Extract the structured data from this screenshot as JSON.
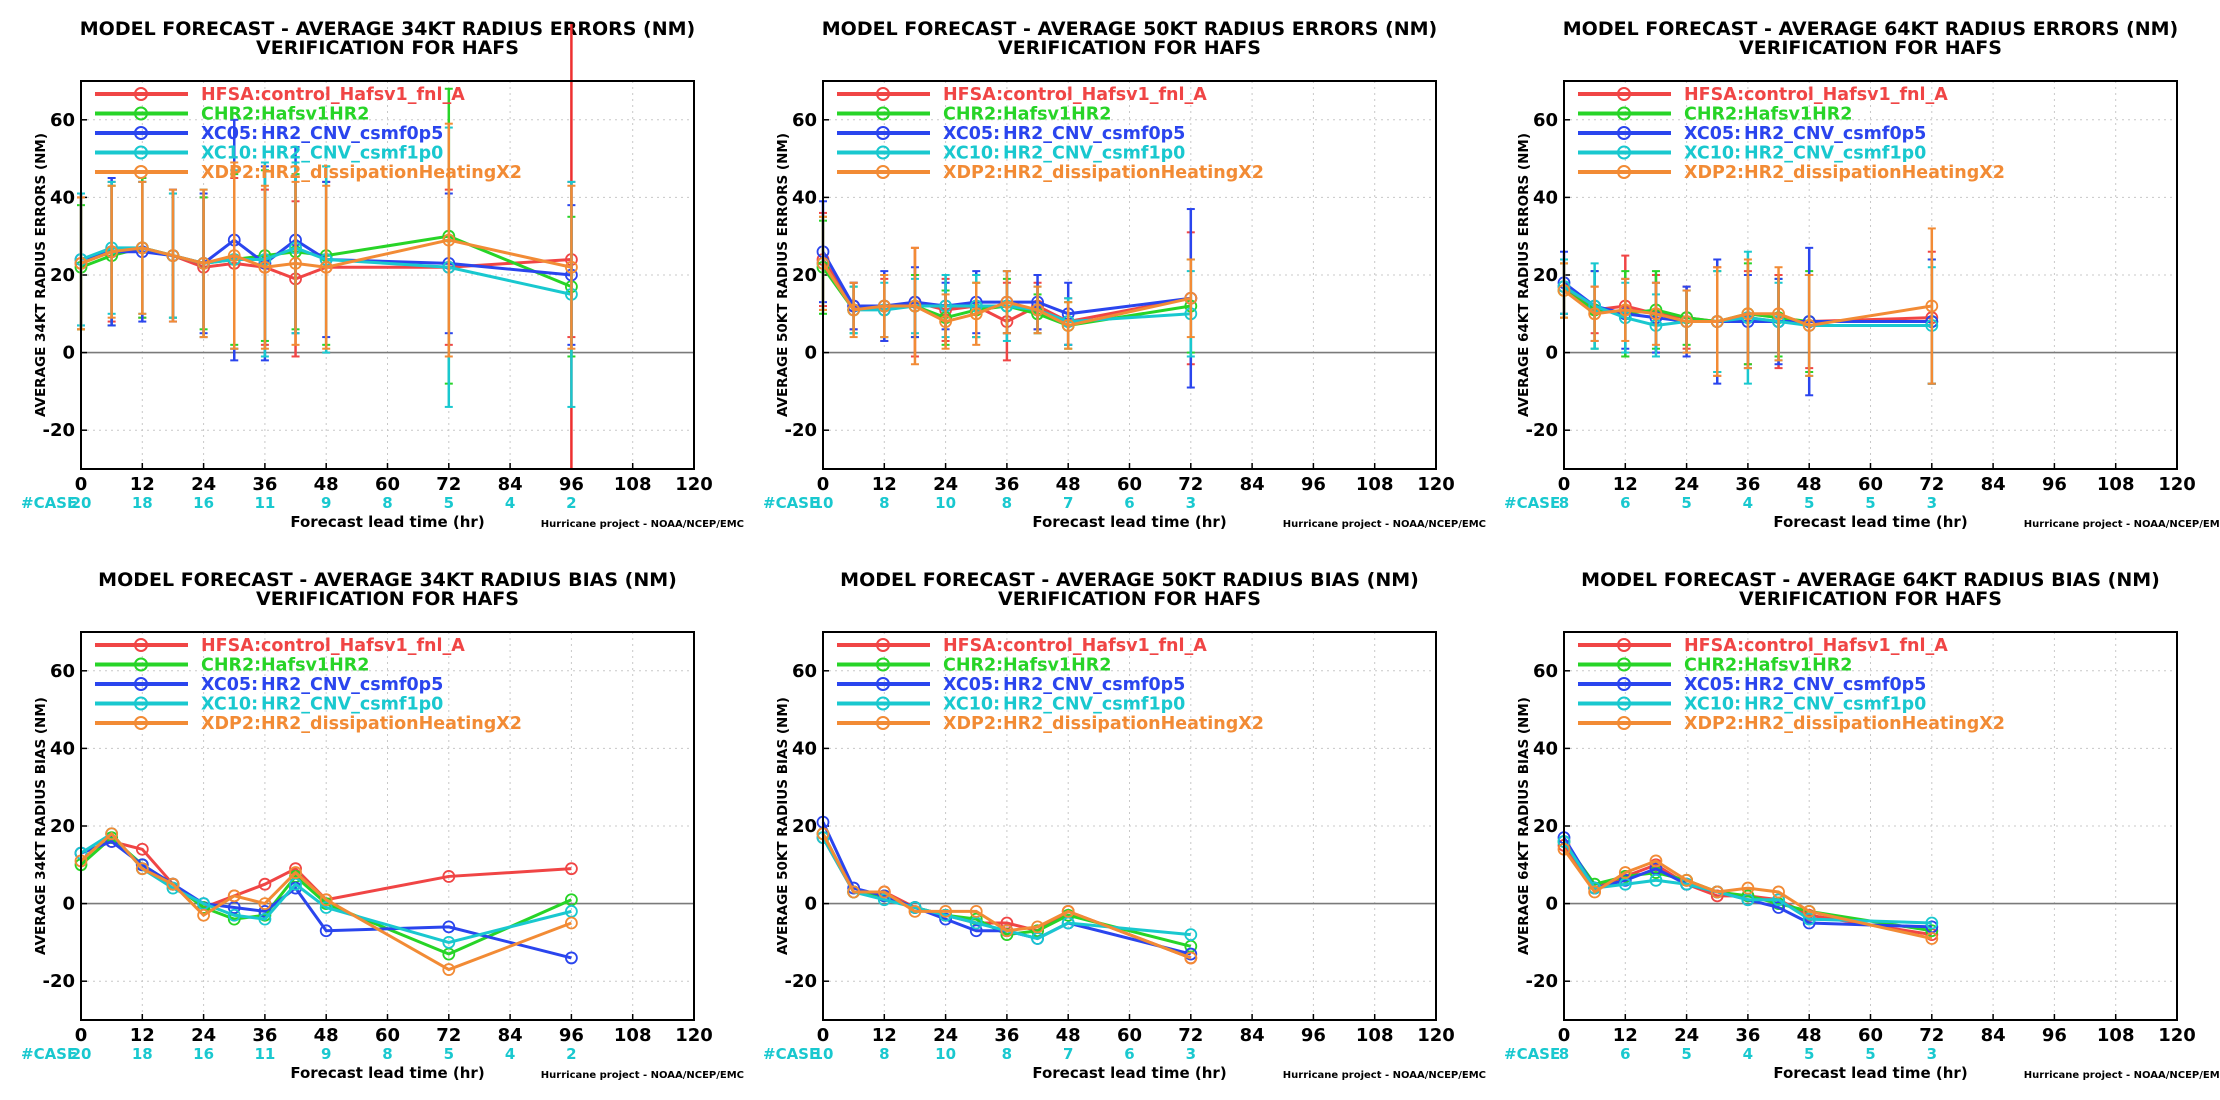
{
  "page": {
    "credit": "Hurricane project - NOAA/NCEP/EMC",
    "xlabel": "Forecast lead time (hr)",
    "case_label": "#CASE",
    "x_ticks": [
      0,
      12,
      24,
      36,
      48,
      60,
      72,
      84,
      96,
      108,
      120
    ],
    "y_ticks": [
      -20,
      0,
      20,
      40,
      60
    ],
    "xlim": [
      0,
      120
    ],
    "ylim": [
      -30,
      70
    ],
    "grid": true
  },
  "legend": [
    {
      "name": "HFSA:",
      "desc": "control_Hafsv1_fnl_A",
      "color": "#f04545"
    },
    {
      "name": "CHR2:",
      "desc": "Hafsv1HR2",
      "color": "#27d427"
    },
    {
      "name": "XC05:",
      "desc": "HR2_CNV_csmf0p5",
      "color": "#2a45ee"
    },
    {
      "name": "XC10:",
      "desc": "HR2_CNV_csmf1p0",
      "color": "#19c8cf"
    },
    {
      "name": "XDP2:",
      "desc": "HR2_dissipationHeatingX2",
      "color": "#f28b35"
    }
  ],
  "chart_data": [
    {
      "type": "line",
      "title": "MODEL FORECAST - AVERAGE 34KT RADIUS ERRORS (NM)",
      "subtitle": "VERIFICATION FOR HAFS",
      "ylabel": "AVERAGE 34KT RADIUS ERRORS (NM)",
      "case_counts": [
        [
          0,
          20
        ],
        [
          12,
          18
        ],
        [
          24,
          16
        ],
        [
          36,
          11
        ],
        [
          48,
          9
        ],
        [
          60,
          8
        ],
        [
          72,
          5
        ],
        [
          84,
          4
        ],
        [
          96,
          2
        ]
      ],
      "vline": 96,
      "x": [
        0,
        6,
        12,
        18,
        24,
        30,
        36,
        42,
        48,
        72,
        96
      ],
      "series": [
        {
          "name": "HFSA",
          "values": [
            23,
            26,
            27,
            25,
            22,
            23,
            22,
            19,
            22,
            22,
            24
          ],
          "err": [
            17,
            18,
            18,
            16,
            18,
            22,
            20,
            20,
            22,
            20,
            20
          ]
        },
        {
          "name": "CHR2",
          "values": [
            22,
            25,
            27,
            25,
            23,
            24,
            25,
            26,
            25,
            30,
            17
          ],
          "err": [
            16,
            18,
            18,
            16,
            17,
            22,
            22,
            20,
            23,
            38,
            18
          ]
        },
        {
          "name": "XC05",
          "values": [
            24,
            26,
            26,
            25,
            23,
            29,
            23,
            29,
            24,
            23,
            20
          ],
          "err": [
            17,
            19,
            18,
            17,
            18,
            31,
            25,
            24,
            20,
            18,
            18
          ]
        },
        {
          "name": "XC10",
          "values": [
            24,
            27,
            27,
            25,
            23,
            24,
            24,
            27,
            24,
            22,
            15
          ],
          "err": [
            17,
            17,
            17,
            16,
            19,
            23,
            25,
            22,
            24,
            36,
            29
          ]
        },
        {
          "name": "XDP2",
          "values": [
            23,
            26,
            27,
            25,
            23,
            25,
            22,
            23,
            22,
            29,
            22
          ],
          "err": [
            17,
            17,
            17,
            17,
            19,
            24,
            21,
            21,
            21,
            30,
            21
          ]
        }
      ]
    },
    {
      "type": "line",
      "title": "MODEL FORECAST - AVERAGE 50KT RADIUS ERRORS (NM)",
      "subtitle": "VERIFICATION FOR HAFS",
      "ylabel": "AVERAGE 50KT RADIUS ERRORS (NM)",
      "case_counts": [
        [
          0,
          10
        ],
        [
          12,
          8
        ],
        [
          24,
          10
        ],
        [
          36,
          8
        ],
        [
          48,
          7
        ],
        [
          60,
          6
        ],
        [
          72,
          3
        ]
      ],
      "x": [
        0,
        6,
        12,
        18,
        24,
        30,
        36,
        42,
        48,
        72
      ],
      "series": [
        {
          "name": "HFSA",
          "values": [
            24,
            12,
            11,
            13,
            11,
            12,
            8,
            12,
            8,
            14
          ],
          "err": [
            12,
            6,
            8,
            14,
            8,
            8,
            10,
            6,
            6,
            17
          ]
        },
        {
          "name": "CHR2",
          "values": [
            22,
            11,
            12,
            12,
            9,
            11,
            12,
            10,
            7,
            12
          ],
          "err": [
            12,
            6,
            8,
            8,
            7,
            7,
            7,
            5,
            6,
            12
          ]
        },
        {
          "name": "XC05",
          "values": [
            26,
            12,
            12,
            13,
            12,
            13,
            13,
            13,
            10,
            14
          ],
          "err": [
            13,
            6,
            9,
            9,
            6,
            8,
            8,
            7,
            8,
            23
          ]
        },
        {
          "name": "XC10",
          "values": [
            23,
            11,
            11,
            12,
            12,
            12,
            12,
            11,
            8,
            10
          ],
          "err": [
            12,
            6,
            7,
            7,
            8,
            8,
            9,
            6,
            6,
            11
          ]
        },
        {
          "name": "XDP2",
          "values": [
            23,
            11,
            12,
            12,
            8,
            10,
            13,
            11,
            7,
            14
          ],
          "err": [
            12,
            7,
            8,
            15,
            7,
            8,
            8,
            6,
            6,
            10
          ]
        }
      ]
    },
    {
      "type": "line",
      "title": "MODEL FORECAST - AVERAGE 64KT RADIUS ERRORS (NM)",
      "subtitle": "VERIFICATION FOR HAFS",
      "ylabel": "AVERAGE 64KT RADIUS ERRORS (NM)",
      "case_counts": [
        [
          0,
          8
        ],
        [
          12,
          6
        ],
        [
          24,
          5
        ],
        [
          36,
          4
        ],
        [
          48,
          5
        ],
        [
          60,
          5
        ],
        [
          72,
          3
        ]
      ],
      "x": [
        0,
        6,
        12,
        18,
        24,
        30,
        36,
        42,
        48,
        72
      ],
      "series": [
        {
          "name": "HFSA",
          "values": [
            17,
            11,
            12,
            10,
            9,
            8,
            9,
            8,
            8,
            9
          ],
          "err": [
            7,
            6,
            13,
            10,
            8,
            14,
            12,
            12,
            12,
            17
          ]
        },
        {
          "name": "CHR2",
          "values": [
            16,
            11,
            10,
            11,
            9,
            8,
            10,
            9,
            8,
            8
          ],
          "err": [
            7,
            10,
            11,
            10,
            7,
            13,
            13,
            10,
            13,
            16
          ]
        },
        {
          "name": "XC05",
          "values": [
            18,
            12,
            10,
            9,
            8,
            8,
            8,
            8,
            8,
            8
          ],
          "err": [
            8,
            9,
            9,
            9,
            9,
            16,
            12,
            11,
            19,
            16
          ]
        },
        {
          "name": "XC10",
          "values": [
            17,
            12,
            9,
            7,
            8,
            8,
            9,
            8,
            7,
            7
          ],
          "err": [
            7,
            11,
            9,
            8,
            8,
            13,
            17,
            10,
            13,
            15
          ]
        },
        {
          "name": "XDP2",
          "values": [
            16,
            10,
            11,
            10,
            8,
            8,
            10,
            10,
            7,
            12
          ],
          "err": [
            7,
            7,
            8,
            8,
            8,
            14,
            14,
            12,
            13,
            20
          ]
        }
      ]
    },
    {
      "type": "line",
      "title": "MODEL FORECAST - AVERAGE 34KT RADIUS BIAS (NM)",
      "subtitle": "VERIFICATION FOR HAFS",
      "ylabel": "AVERAGE 34KT RADIUS BIAS (NM)",
      "case_counts": [
        [
          0,
          20
        ],
        [
          12,
          18
        ],
        [
          24,
          16
        ],
        [
          36,
          11
        ],
        [
          48,
          9
        ],
        [
          60,
          8
        ],
        [
          72,
          5
        ],
        [
          84,
          4
        ],
        [
          96,
          2
        ]
      ],
      "x": [
        0,
        6,
        12,
        18,
        24,
        30,
        36,
        42,
        48,
        72,
        96
      ],
      "series": [
        {
          "name": "HFSA",
          "values": [
            13,
            16,
            14,
            5,
            -1,
            2,
            5,
            9,
            1,
            7,
            9
          ]
        },
        {
          "name": "CHR2",
          "values": [
            10,
            17,
            10,
            5,
            -1,
            -4,
            -3,
            7,
            0,
            -13,
            1
          ]
        },
        {
          "name": "XC05",
          "values": [
            13,
            16,
            10,
            5,
            0,
            -1,
            -2,
            4,
            -7,
            -6,
            -14
          ]
        },
        {
          "name": "XC10",
          "values": [
            13,
            18,
            9,
            4,
            0,
            -3,
            -4,
            5,
            -1,
            -10,
            -2
          ]
        },
        {
          "name": "XDP2",
          "values": [
            11,
            18,
            9,
            5,
            -3,
            2,
            0,
            8,
            1,
            -17,
            -5
          ]
        }
      ]
    },
    {
      "type": "line",
      "title": "MODEL FORECAST - AVERAGE 50KT RADIUS BIAS (NM)",
      "subtitle": "VERIFICATION FOR HAFS",
      "ylabel": "AVERAGE 50KT RADIUS BIAS (NM)",
      "case_counts": [
        [
          0,
          10
        ],
        [
          12,
          8
        ],
        [
          24,
          10
        ],
        [
          36,
          8
        ],
        [
          48,
          7
        ],
        [
          60,
          6
        ],
        [
          72,
          3
        ]
      ],
      "x": [
        0,
        6,
        12,
        18,
        24,
        30,
        36,
        42,
        48,
        72
      ],
      "series": [
        {
          "name": "HFSA",
          "values": [
            17,
            3,
            3,
            -1,
            -3,
            -5,
            -5,
            -7,
            -2,
            -14
          ]
        },
        {
          "name": "CHR2",
          "values": [
            18,
            3,
            2,
            -1,
            -3,
            -4,
            -8,
            -7,
            -3,
            -11
          ]
        },
        {
          "name": "XC05",
          "values": [
            21,
            4,
            2,
            -1,
            -4,
            -7,
            -7,
            -9,
            -5,
            -13
          ]
        },
        {
          "name": "XC10",
          "values": [
            17,
            3,
            1,
            -1,
            -3,
            -5,
            -7,
            -9,
            -5,
            -8
          ]
        },
        {
          "name": "XDP2",
          "values": [
            18,
            3,
            3,
            -2,
            -2,
            -2,
            -7,
            -6,
            -2,
            -14
          ]
        }
      ]
    },
    {
      "type": "line",
      "title": "MODEL FORECAST - AVERAGE 64KT RADIUS BIAS (NM)",
      "subtitle": "VERIFICATION FOR HAFS",
      "ylabel": "AVERAGE 64KT RADIUS BIAS (NM)",
      "case_counts": [
        [
          0,
          8
        ],
        [
          12,
          6
        ],
        [
          24,
          5
        ],
        [
          36,
          4
        ],
        [
          48,
          5
        ],
        [
          60,
          5
        ],
        [
          72,
          3
        ]
      ],
      "x": [
        0,
        6,
        12,
        18,
        24,
        30,
        36,
        42,
        48,
        72
      ],
      "series": [
        {
          "name": "HFSA",
          "values": [
            15,
            4,
            7,
            10,
            5,
            2,
            2,
            1,
            -3,
            -8
          ]
        },
        {
          "name": "CHR2",
          "values": [
            16,
            5,
            7,
            8,
            6,
            3,
            2,
            0,
            -2,
            -7
          ]
        },
        {
          "name": "XC05",
          "values": [
            17,
            4,
            6,
            9,
            5,
            3,
            1,
            -1,
            -5,
            -6
          ]
        },
        {
          "name": "XC10",
          "values": [
            16,
            4,
            5,
            6,
            5,
            3,
            1,
            1,
            -4,
            -5
          ]
        },
        {
          "name": "XDP2",
          "values": [
            14,
            3,
            8,
            11,
            6,
            3,
            4,
            3,
            -2,
            -9
          ]
        }
      ]
    }
  ]
}
